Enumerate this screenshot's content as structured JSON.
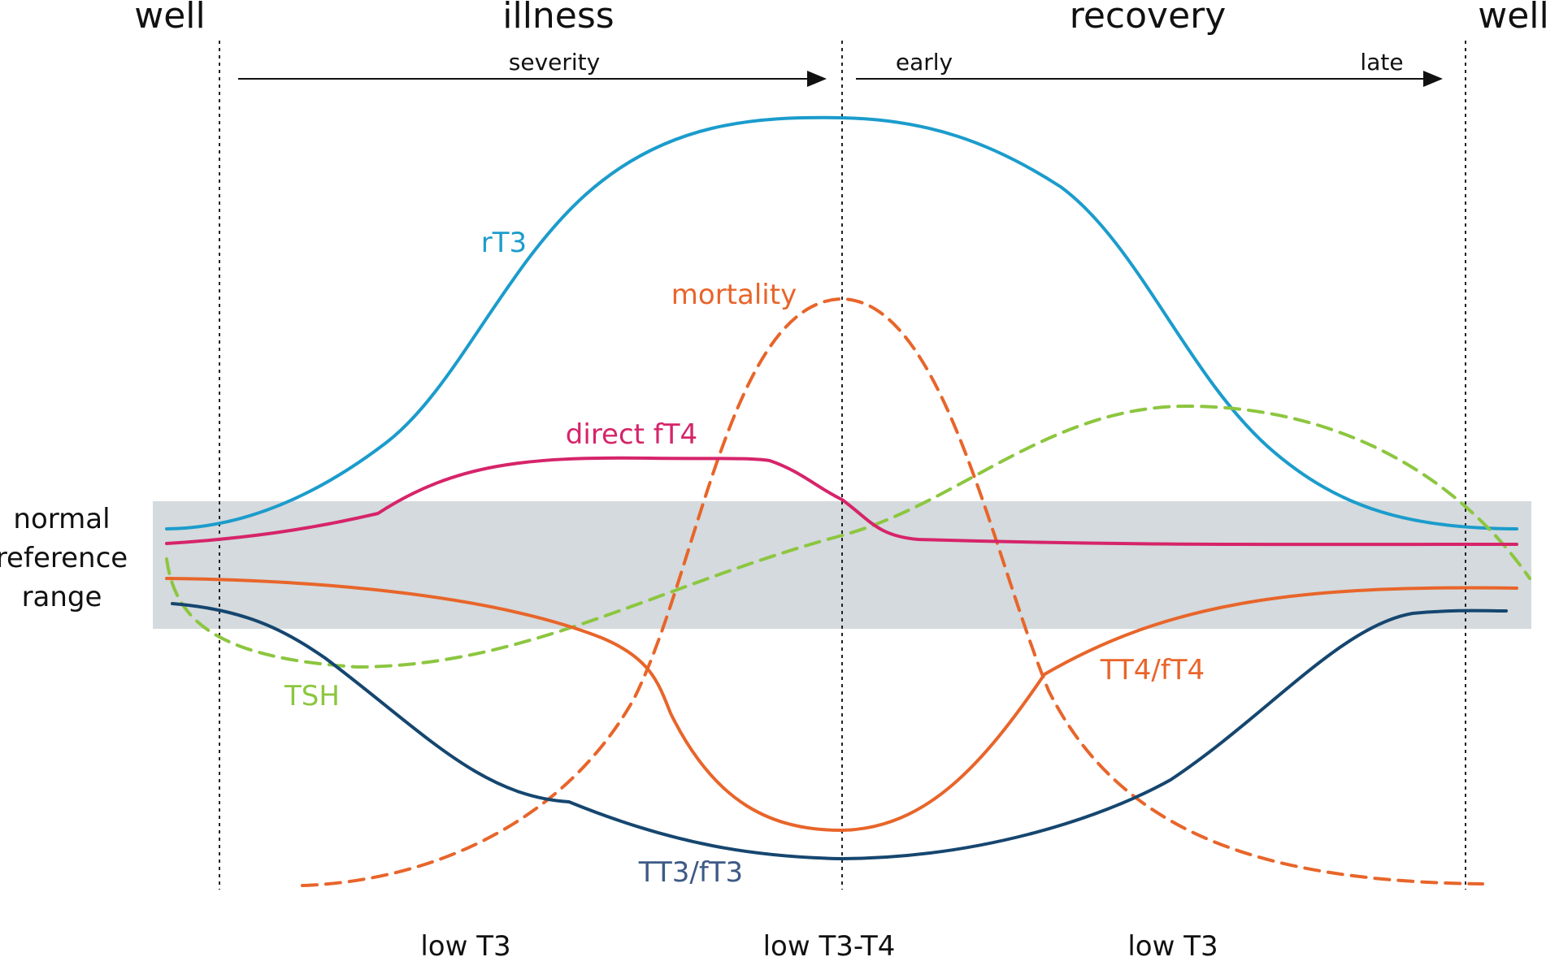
{
  "phases": {
    "well_left": "well",
    "illness": "illness",
    "recovery": "recovery",
    "well_right": "well"
  },
  "arrows": {
    "severity": "severity",
    "early": "early",
    "late": "late"
  },
  "reference_range": {
    "line1": "normal",
    "line2": "reference",
    "line3": "range"
  },
  "curves": {
    "rT3": {
      "label": "rT3",
      "color": "#1b9ccc"
    },
    "mortality": {
      "label": "mortality",
      "color": "#e8652a"
    },
    "direct_fT4": {
      "label": "direct fT4",
      "color": "#d6246a"
    },
    "TSH": {
      "label": "TSH",
      "color": "#8cc63f"
    },
    "TT4_fT4": {
      "label": "TT4/fT4",
      "color": "#e8652a"
    },
    "TT3_fT3": {
      "label": "TT3/fT3",
      "color": "#15466f"
    }
  },
  "states": {
    "left": "low T3",
    "center": "low T3-T4",
    "right": "low T3"
  },
  "colors": {
    "reference_band": "#d4dadd",
    "tt3_label": "#3d5a86"
  }
}
